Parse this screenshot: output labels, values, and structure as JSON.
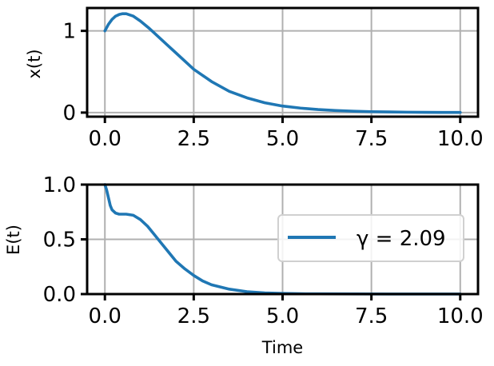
{
  "colors": {
    "series": "#1f77b4",
    "grid": "#b0b0b0",
    "axes": "#000000"
  },
  "chart_data": [
    {
      "type": "line",
      "title": "",
      "xlabel": "",
      "ylabel": "x(t)",
      "xlim": [
        -0.5,
        10.5
      ],
      "ylim": [
        -0.05,
        1.28
      ],
      "xticks": [
        0.0,
        2.5,
        5.0,
        7.5,
        10.0
      ],
      "xtick_labels": [
        "0.0",
        "2.5",
        "5.0",
        "7.5",
        "10.0"
      ],
      "yticks": [
        0,
        1
      ],
      "ytick_labels": [
        "0",
        "1"
      ],
      "grid": true,
      "series": [
        {
          "x": [
            0.0,
            0.1,
            0.2,
            0.3,
            0.4,
            0.5,
            0.6,
            0.8,
            1.0,
            1.25,
            1.5,
            1.75,
            2.0,
            2.5,
            3.0,
            3.5,
            4.0,
            4.5,
            5.0,
            5.5,
            6.0,
            6.5,
            7.0,
            7.5,
            8.0,
            8.5,
            9.0,
            9.5,
            10.0
          ],
          "y": [
            1.0,
            1.08,
            1.14,
            1.18,
            1.2,
            1.21,
            1.21,
            1.18,
            1.12,
            1.03,
            0.93,
            0.83,
            0.73,
            0.53,
            0.38,
            0.26,
            0.18,
            0.12,
            0.08,
            0.055,
            0.037,
            0.025,
            0.017,
            0.011,
            0.008,
            0.005,
            0.003,
            0.002,
            0.0015
          ]
        }
      ]
    },
    {
      "type": "line",
      "title": "",
      "xlabel": "Time",
      "ylabel": "E(t)",
      "xlim": [
        -0.5,
        10.5
      ],
      "ylim": [
        0.0,
        1.0
      ],
      "xticks": [
        0.0,
        2.5,
        5.0,
        7.5,
        10.0
      ],
      "xtick_labels": [
        "0.0",
        "2.5",
        "5.0",
        "7.5",
        "10.0"
      ],
      "yticks": [
        0.0,
        0.5,
        1.0
      ],
      "ytick_labels": [
        "0.0",
        "0.5",
        "1.0"
      ],
      "grid": true,
      "legend": {
        "placement": "center-right",
        "entries": [
          "γ = 2.09"
        ]
      },
      "series": [
        {
          "name": "γ = 2.09",
          "x": [
            0.0,
            0.05,
            0.1,
            0.15,
            0.2,
            0.3,
            0.4,
            0.5,
            0.6,
            0.8,
            1.0,
            1.2,
            1.4,
            1.6,
            1.8,
            2.0,
            2.25,
            2.5,
            2.75,
            3.0,
            3.5,
            4.0,
            4.5,
            5.0,
            5.5,
            6.0,
            7.0,
            8.0,
            9.0,
            10.0
          ],
          "y": [
            1.0,
            0.95,
            0.88,
            0.81,
            0.77,
            0.74,
            0.73,
            0.73,
            0.73,
            0.72,
            0.68,
            0.62,
            0.54,
            0.46,
            0.38,
            0.3,
            0.23,
            0.17,
            0.12,
            0.085,
            0.045,
            0.022,
            0.011,
            0.006,
            0.003,
            0.002,
            0.001,
            0.0005,
            0.0003,
            0.0002
          ]
        }
      ]
    }
  ]
}
